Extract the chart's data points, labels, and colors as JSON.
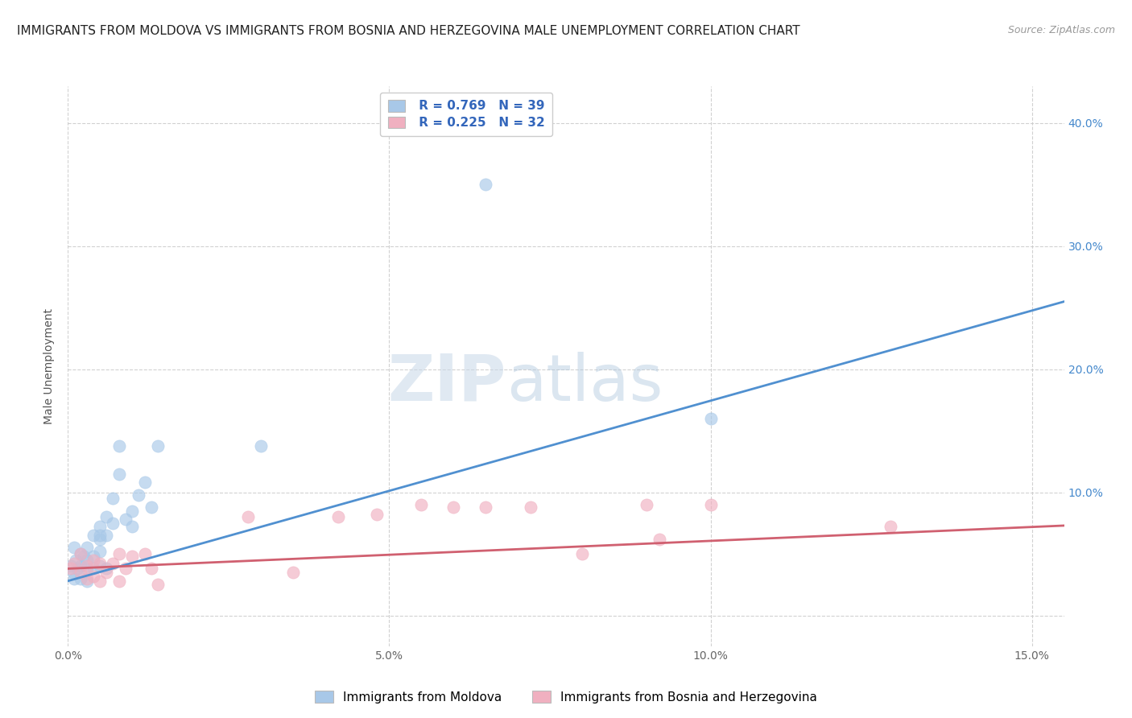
{
  "title": "IMMIGRANTS FROM MOLDOVA VS IMMIGRANTS FROM BOSNIA AND HERZEGOVINA MALE UNEMPLOYMENT CORRELATION CHART",
  "source": "Source: ZipAtlas.com",
  "ylabel": "Male Unemployment",
  "xlabel_ticks": [
    "0.0%",
    "5.0%",
    "10.0%",
    "15.0%"
  ],
  "ytick_right_labels": [
    "",
    "10.0%",
    "20.0%",
    "30.0%",
    "40.0%"
  ],
  "xlim": [
    0.0,
    0.155
  ],
  "ylim": [
    -0.025,
    0.43
  ],
  "blue_R": "0.769",
  "blue_N": "39",
  "pink_R": "0.225",
  "pink_N": "32",
  "blue_color": "#a8c8e8",
  "pink_color": "#f0b0c0",
  "line_blue": "#5090d0",
  "line_pink": "#d06070",
  "legend_label_blue": "Immigrants from Moldova",
  "legend_label_pink": "Immigrants from Bosnia and Herzegovina",
  "blue_points_x": [
    0.0005,
    0.0008,
    0.001,
    0.001,
    0.0012,
    0.0015,
    0.002,
    0.002,
    0.002,
    0.0025,
    0.003,
    0.003,
    0.003,
    0.003,
    0.004,
    0.004,
    0.004,
    0.005,
    0.005,
    0.005,
    0.005,
    0.005,
    0.006,
    0.006,
    0.006,
    0.007,
    0.007,
    0.008,
    0.008,
    0.009,
    0.01,
    0.01,
    0.011,
    0.012,
    0.013,
    0.014,
    0.03,
    0.065,
    0.1
  ],
  "blue_points_y": [
    0.04,
    0.035,
    0.055,
    0.03,
    0.045,
    0.038,
    0.05,
    0.04,
    0.03,
    0.048,
    0.055,
    0.045,
    0.038,
    0.028,
    0.065,
    0.048,
    0.038,
    0.062,
    0.072,
    0.065,
    0.052,
    0.04,
    0.08,
    0.065,
    0.038,
    0.095,
    0.075,
    0.138,
    0.115,
    0.078,
    0.085,
    0.072,
    0.098,
    0.108,
    0.088,
    0.138,
    0.138,
    0.35,
    0.16
  ],
  "pink_points_x": [
    0.0005,
    0.001,
    0.002,
    0.002,
    0.003,
    0.003,
    0.004,
    0.004,
    0.005,
    0.005,
    0.006,
    0.007,
    0.008,
    0.008,
    0.009,
    0.01,
    0.012,
    0.013,
    0.014,
    0.028,
    0.035,
    0.042,
    0.048,
    0.055,
    0.06,
    0.065,
    0.072,
    0.08,
    0.09,
    0.092,
    0.1,
    0.128
  ],
  "pink_points_y": [
    0.038,
    0.042,
    0.05,
    0.035,
    0.04,
    0.03,
    0.045,
    0.032,
    0.042,
    0.028,
    0.035,
    0.042,
    0.028,
    0.05,
    0.038,
    0.048,
    0.05,
    0.038,
    0.025,
    0.08,
    0.035,
    0.08,
    0.082,
    0.09,
    0.088,
    0.088,
    0.088,
    0.05,
    0.09,
    0.062,
    0.09,
    0.072
  ],
  "blue_line_x": [
    0.0,
    0.155
  ],
  "blue_line_y": [
    0.028,
    0.255
  ],
  "pink_line_x": [
    0.0,
    0.155
  ],
  "pink_line_y": [
    0.038,
    0.073
  ],
  "grid_color": "#cccccc",
  "bg_color": "#ffffff",
  "title_fontsize": 11,
  "source_fontsize": 9,
  "axis_label_fontsize": 10,
  "tick_fontsize": 10,
  "legend_fontsize": 11,
  "marker_size": 120
}
